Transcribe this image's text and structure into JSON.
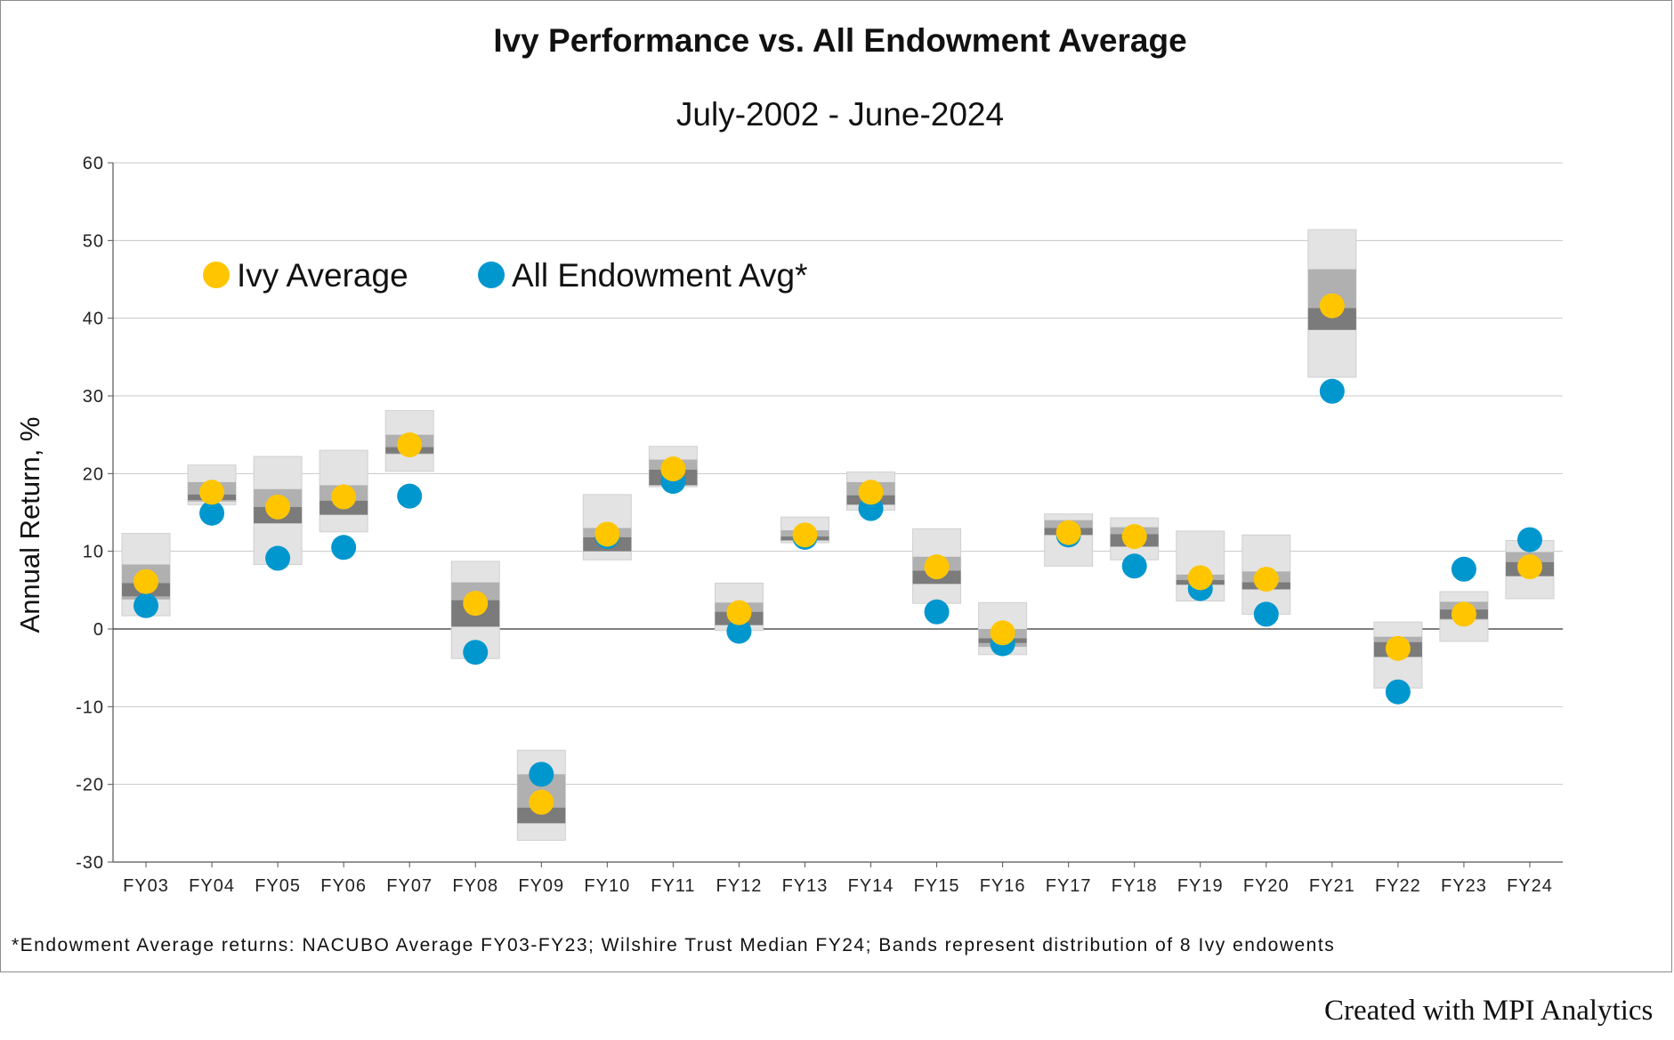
{
  "chart_data": {
    "type": "scatter",
    "title": "Ivy Performance vs. All Endowment Average",
    "subtitle": "July-2002 - June-2024",
    "ylabel": "Annual Return, %",
    "xlabel": "",
    "ylim": [
      -30,
      60
    ],
    "yticks": [
      60,
      50,
      40,
      30,
      20,
      10,
      0,
      -10,
      -20,
      -30
    ],
    "grid": true,
    "legend_position": "top-left",
    "categories": [
      "FY03",
      "FY04",
      "FY05",
      "FY06",
      "FY07",
      "FY08",
      "FY09",
      "FY10",
      "FY11",
      "FY12",
      "FY13",
      "FY14",
      "FY15",
      "FY16",
      "FY17",
      "FY18",
      "FY19",
      "FY20",
      "FY21",
      "FY22",
      "FY23",
      "FY24"
    ],
    "series": [
      {
        "name": "Ivy Average",
        "color": "#ffc600",
        "values": [
          6.1,
          17.6,
          15.7,
          17.0,
          23.7,
          3.3,
          -22.3,
          12.2,
          20.6,
          2.1,
          12.1,
          17.6,
          8.0,
          -0.5,
          12.4,
          11.9,
          6.6,
          6.4,
          41.6,
          -2.5,
          1.9,
          8.0
        ]
      },
      {
        "name": "All Endowment Avg*",
        "color": "#0097cf",
        "values": [
          3.0,
          14.9,
          9.1,
          10.5,
          17.1,
          -3.0,
          -18.7,
          11.9,
          19.0,
          -0.3,
          11.8,
          15.5,
          2.2,
          -1.9,
          12.1,
          8.1,
          5.2,
          1.9,
          30.6,
          -8.1,
          7.7,
          11.5
        ]
      }
    ],
    "bands": [
      {
        "outer": [
          1.7,
          12.3
        ],
        "inner": [
          3.8,
          8.3
        ],
        "core": [
          4.2,
          5.9
        ]
      },
      {
        "outer": [
          16.0,
          21.1
        ],
        "inner": [
          16.4,
          18.9
        ],
        "core": [
          16.6,
          17.3
        ]
      },
      {
        "outer": [
          8.3,
          22.2
        ],
        "inner": [
          13.6,
          18.0
        ],
        "core": [
          13.6,
          15.7
        ]
      },
      {
        "outer": [
          12.5,
          23.0
        ],
        "inner": [
          14.7,
          18.5
        ],
        "core": [
          14.7,
          16.5
        ]
      },
      {
        "outer": [
          20.3,
          28.1
        ],
        "inner": [
          22.5,
          25.0
        ],
        "core": [
          22.6,
          23.4
        ]
      },
      {
        "outer": [
          -3.8,
          8.7
        ],
        "inner": [
          0.3,
          6.0
        ],
        "core": [
          0.3,
          3.7
        ]
      },
      {
        "outer": [
          -27.2,
          -15.6
        ],
        "inner": [
          -25.0,
          -18.7
        ],
        "core": [
          -25.0,
          -23.0
        ]
      },
      {
        "outer": [
          8.9,
          17.3
        ],
        "inner": [
          10.0,
          13.0
        ],
        "core": [
          10.0,
          11.8
        ]
      },
      {
        "outer": [
          18.3,
          23.5
        ],
        "inner": [
          18.5,
          21.8
        ],
        "core": [
          18.5,
          20.5
        ]
      },
      {
        "outer": [
          -0.2,
          5.9
        ],
        "inner": [
          0.5,
          3.4
        ],
        "core": [
          0.5,
          2.2
        ]
      },
      {
        "outer": [
          11.1,
          14.4
        ],
        "inner": [
          11.4,
          12.7
        ],
        "core": [
          11.4,
          11.9
        ]
      },
      {
        "outer": [
          15.3,
          20.2
        ],
        "inner": [
          16.0,
          18.9
        ],
        "core": [
          16.0,
          17.2
        ]
      },
      {
        "outer": [
          3.3,
          12.9
        ],
        "inner": [
          5.8,
          9.3
        ],
        "core": [
          5.8,
          7.5
        ]
      },
      {
        "outer": [
          -3.3,
          3.4
        ],
        "inner": [
          -2.3,
          0.0
        ],
        "core": [
          -1.8,
          -1.2
        ]
      },
      {
        "outer": [
          8.1,
          14.8
        ],
        "inner": [
          12.1,
          14.0
        ],
        "core": [
          12.1,
          13.0
        ]
      },
      {
        "outer": [
          8.9,
          14.3
        ],
        "inner": [
          10.6,
          13.1
        ],
        "core": [
          10.6,
          12.2
        ]
      },
      {
        "outer": [
          3.6,
          12.6
        ],
        "inner": [
          5.7,
          7.0
        ],
        "core": [
          5.7,
          6.3
        ]
      },
      {
        "outer": [
          1.9,
          12.1
        ],
        "inner": [
          5.1,
          7.4
        ],
        "core": [
          5.1,
          6.0
        ]
      },
      {
        "outer": [
          32.4,
          51.4
        ],
        "inner": [
          38.5,
          46.3
        ],
        "core": [
          38.5,
          41.3
        ]
      },
      {
        "outer": [
          -7.6,
          0.9
        ],
        "inner": [
          -3.6,
          -1.0
        ],
        "core": [
          -3.6,
          -1.7
        ]
      },
      {
        "outer": [
          -1.6,
          4.8
        ],
        "inner": [
          1.2,
          3.5
        ],
        "core": [
          1.3,
          2.5
        ]
      },
      {
        "outer": [
          3.9,
          11.4
        ],
        "inner": [
          6.8,
          9.9
        ],
        "core": [
          6.8,
          8.6
        ]
      }
    ],
    "band_colors": {
      "outer": "#e3e3e3",
      "inner": "#b0b0b0",
      "core": "#7b7b7b"
    },
    "footnote": "*Endowment Average returns: NACUBO Average FY03-FY23; Wilshire Trust Median FY24;  Bands represent distribution of 8 Ivy endowents"
  },
  "credit": "Created with MPI Analytics"
}
